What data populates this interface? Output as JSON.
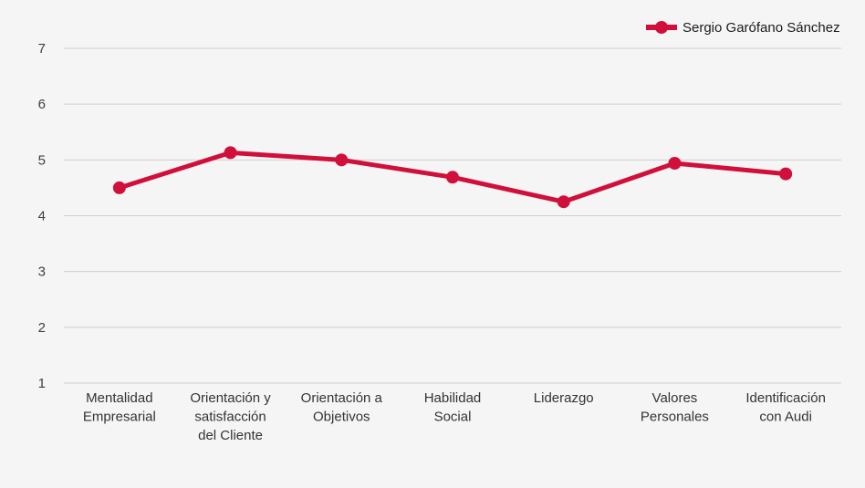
{
  "chart_data": {
    "type": "line",
    "categories": [
      [
        "Mentalidad",
        "Empresarial"
      ],
      [
        "Orientación y",
        "satisfacción",
        "del Cliente"
      ],
      [
        "Orientación a",
        "Objetivos"
      ],
      [
        "Habilidad",
        "Social"
      ],
      [
        "Liderazgo"
      ],
      [
        "Valores",
        "Personales"
      ],
      [
        "Identificación",
        "con Audi"
      ]
    ],
    "series": [
      {
        "name": "Sergio Garófano Sánchez",
        "color": "#d0103a",
        "values": [
          4.5,
          5.13,
          5.0,
          4.69,
          4.25,
          4.94,
          4.75
        ]
      }
    ],
    "ylim": [
      1,
      7
    ],
    "yticks": [
      "1",
      "2",
      "3",
      "4",
      "5",
      "6",
      "7"
    ],
    "grid": true,
    "legend_position": "top-right",
    "title": "",
    "xlabel": "",
    "ylabel": ""
  }
}
